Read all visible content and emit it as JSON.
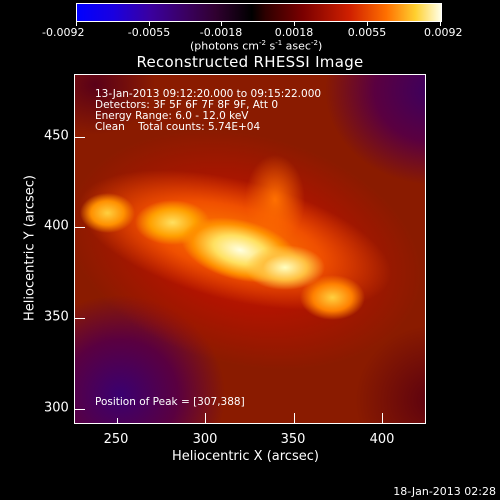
{
  "colorbar": {
    "ticks": [
      "-0.0092",
      "-0.0055",
      "-0.0018",
      "0.0018",
      "0.0055",
      "0.0092"
    ],
    "units_prefix": "(photons cm",
    "units_exp1": "-2",
    "units_mid1": " s",
    "units_exp2": "-1",
    "units_mid2": " asec",
    "units_exp3": "-2",
    "units_suffix": ")"
  },
  "title": "Reconstructed RHESSI Image",
  "annotations": {
    "time": "13-Jan-2013 09:12:20.000 to 09:15:22.000",
    "detectors": "Detectors: 3F 5F 6F 7F 8F 9F, Att 0",
    "energy": "Energy Range: 6.0 - 12.0 keV",
    "clean": "Clean    Total counts: 5.74E+04",
    "peak": "Position of Peak = [307,388]"
  },
  "axes": {
    "xlabel": "Heliocentric X (arcsec)",
    "ylabel": "Heliocentric Y (arcsec)",
    "xticks": [
      "250",
      "300",
      "350",
      "400"
    ],
    "yticks": [
      "450",
      "400",
      "350",
      "300"
    ]
  },
  "timestamp": "18-Jan-2013 02:28",
  "colors": {
    "background": "#000000",
    "dark_red": "#8a1b00",
    "peak": "#ffffe0"
  }
}
